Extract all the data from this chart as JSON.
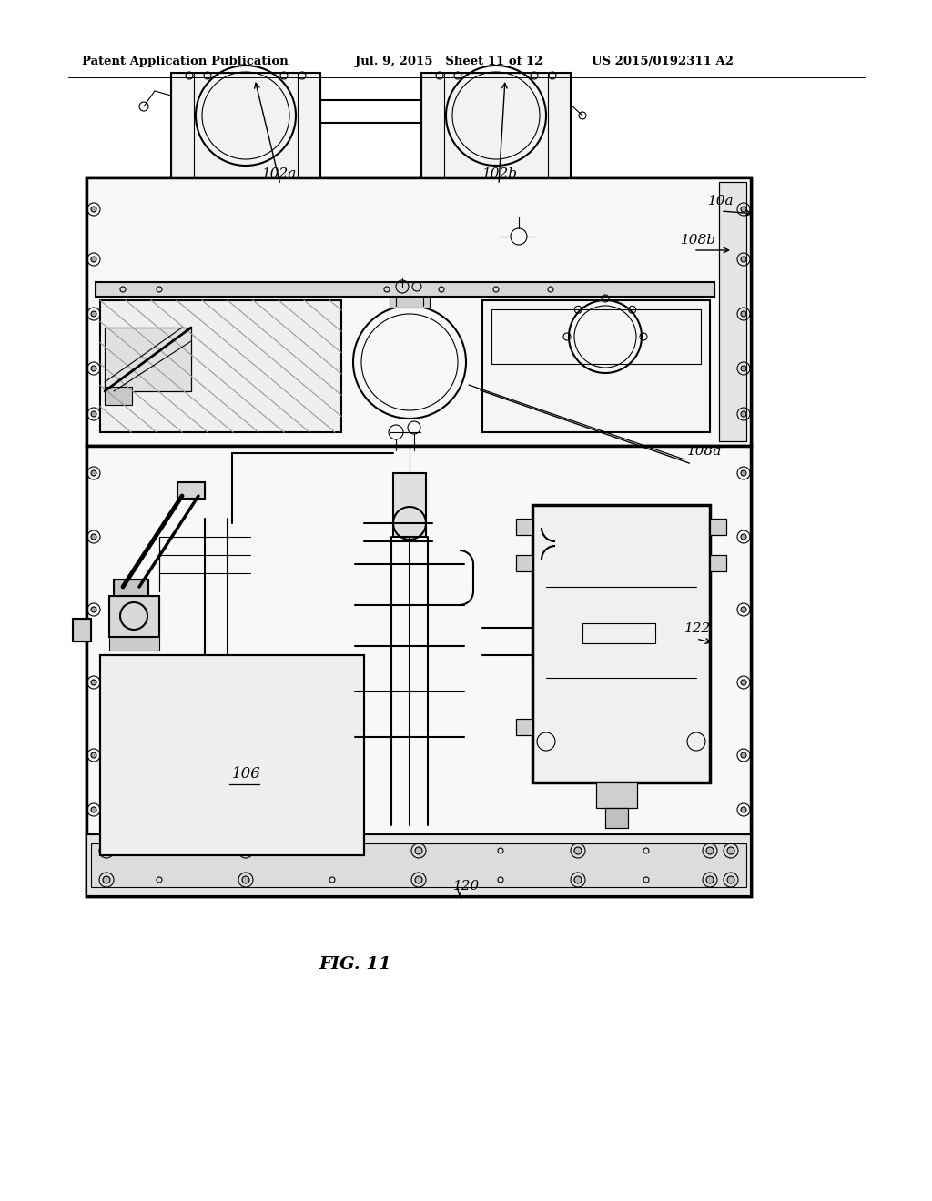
{
  "header_left": "Patent Application Publication",
  "header_mid": "Jul. 9, 2015   Sheet 11 of 12",
  "header_right": "US 2015/0192311 A2",
  "figure_caption": "FIG. 11",
  "bg_color": "#ffffff",
  "line_color": "#000000",
  "label_102a": "102a",
  "label_102b": "102b",
  "label_10a": "10a",
  "label_108b": "108b",
  "label_108a": "108a",
  "label_106": "106",
  "label_122": "122",
  "label_120": "120"
}
